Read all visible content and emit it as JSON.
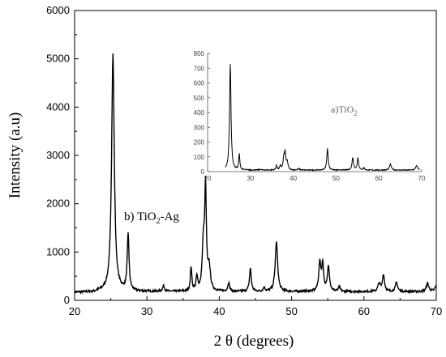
{
  "chart_data": {
    "type": "line",
    "xlabel": "2 θ (degrees)",
    "ylabel": "Intensity (a.u)",
    "xlim": [
      20,
      70
    ],
    "ylim": [
      0,
      6000
    ],
    "x_ticks": [
      "20",
      "30",
      "40",
      "50",
      "60",
      "70"
    ],
    "y_ticks": [
      "0",
      "1000",
      "2000",
      "3000",
      "4000",
      "5000",
      "6000"
    ],
    "annotation_main": "b) TiO",
    "annotation_main_sub": "2",
    "annotation_main_suffix": "-Ag",
    "main_series": {
      "name": "b) TiO2-Ag",
      "color": "#000000",
      "baseline": 180,
      "peaks": [
        {
          "x": 25.3,
          "y": 5100,
          "w": 0.22
        },
        {
          "x": 27.4,
          "y": 1340,
          "w": 0.15
        },
        {
          "x": 32.3,
          "y": 300,
          "w": 0.15
        },
        {
          "x": 36.1,
          "y": 680,
          "w": 0.12
        },
        {
          "x": 36.9,
          "y": 460,
          "w": 0.14
        },
        {
          "x": 37.8,
          "y": 1100,
          "w": 0.18
        },
        {
          "x": 38.1,
          "y": 2240,
          "w": 0.14
        },
        {
          "x": 38.6,
          "y": 640,
          "w": 0.2
        },
        {
          "x": 41.3,
          "y": 360,
          "w": 0.15
        },
        {
          "x": 44.3,
          "y": 660,
          "w": 0.15
        },
        {
          "x": 46.2,
          "y": 260,
          "w": 0.15
        },
        {
          "x": 47.9,
          "y": 1200,
          "w": 0.2
        },
        {
          "x": 53.9,
          "y": 760,
          "w": 0.18
        },
        {
          "x": 54.3,
          "y": 720,
          "w": 0.15
        },
        {
          "x": 55.1,
          "y": 700,
          "w": 0.17
        },
        {
          "x": 56.6,
          "y": 270,
          "w": 0.15
        },
        {
          "x": 62.1,
          "y": 340,
          "w": 0.2
        },
        {
          "x": 62.7,
          "y": 530,
          "w": 0.17
        },
        {
          "x": 64.5,
          "y": 370,
          "w": 0.18
        },
        {
          "x": 68.8,
          "y": 350,
          "w": 0.2
        },
        {
          "x": 70.0,
          "y": 300,
          "w": 0.2
        }
      ]
    },
    "inset": {
      "xlim": [
        20,
        70
      ],
      "ylim": [
        0,
        800
      ],
      "x_ticks": [
        "20",
        "30",
        "40",
        "50",
        "60",
        "70"
      ],
      "y_ticks": [
        "0",
        "100",
        "200",
        "300",
        "400",
        "500",
        "600",
        "700",
        "800"
      ],
      "annotation": "a)TiO",
      "annotation_sub": "2",
      "series": {
        "name": "a)TiO2",
        "color": "#000000",
        "baseline": 10,
        "peaks": [
          {
            "x": 25.3,
            "y": 730,
            "w": 0.2
          },
          {
            "x": 27.4,
            "y": 115,
            "w": 0.15
          },
          {
            "x": 32.3,
            "y": 15,
            "w": 0.2
          },
          {
            "x": 36.1,
            "y": 40,
            "w": 0.15
          },
          {
            "x": 37.0,
            "y": 35,
            "w": 0.2
          },
          {
            "x": 37.8,
            "y": 80,
            "w": 0.2
          },
          {
            "x": 38.1,
            "y": 115,
            "w": 0.2
          },
          {
            "x": 38.6,
            "y": 60,
            "w": 0.2
          },
          {
            "x": 41.3,
            "y": 20,
            "w": 0.2
          },
          {
            "x": 48.0,
            "y": 155,
            "w": 0.2
          },
          {
            "x": 53.9,
            "y": 95,
            "w": 0.2
          },
          {
            "x": 55.1,
            "y": 90,
            "w": 0.2
          },
          {
            "x": 56.5,
            "y": 25,
            "w": 0.2
          },
          {
            "x": 62.7,
            "y": 50,
            "w": 0.25
          },
          {
            "x": 68.8,
            "y": 40,
            "w": 0.25
          },
          {
            "x": 70.0,
            "y": 30,
            "w": 0.25
          }
        ]
      }
    }
  }
}
